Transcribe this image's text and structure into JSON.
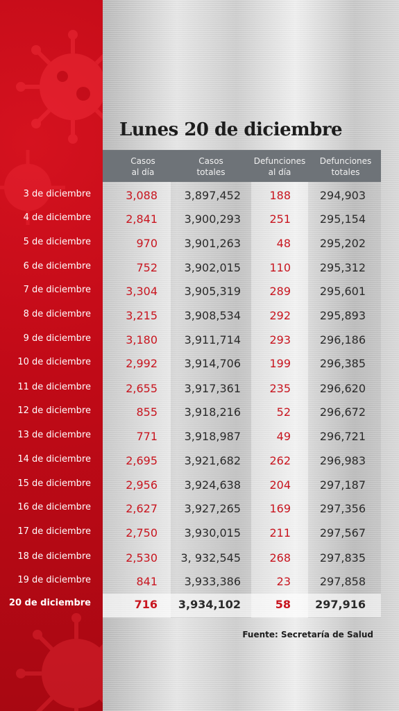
{
  "title": "Lunes 20 de diciembre",
  "headers": {
    "casos_dia": "Casos\nal día",
    "casos_totales": "Casos\ntotales",
    "def_dia": "Defunciones\nal día",
    "def_totales": "Defunciones\ntotales"
  },
  "rows": [
    {
      "date": "3 de diciembre",
      "casos_dia": "3,088",
      "casos_totales": "3,897,452",
      "def_dia": "188",
      "def_totales": "294,903"
    },
    {
      "date": "4 de diciembre",
      "casos_dia": "2,841",
      "casos_totales": "3,900,293",
      "def_dia": "251",
      "def_totales": "295,154"
    },
    {
      "date": "5 de diciembre",
      "casos_dia": "970",
      "casos_totales": "3,901,263",
      "def_dia": "48",
      "def_totales": "295,202"
    },
    {
      "date": "6 de diciembre",
      "casos_dia": "752",
      "casos_totales": "3,902,015",
      "def_dia": "110",
      "def_totales": "295,312"
    },
    {
      "date": "7 de diciembre",
      "casos_dia": "3,304",
      "casos_totales": "3,905,319",
      "def_dia": "289",
      "def_totales": "295,601"
    },
    {
      "date": "8 de diciembre",
      "casos_dia": "3,215",
      "casos_totales": "3,908,534",
      "def_dia": "292",
      "def_totales": "295,893"
    },
    {
      "date": "9 de diciembre",
      "casos_dia": "3,180",
      "casos_totales": "3,911,714",
      "def_dia": "293",
      "def_totales": "296,186"
    },
    {
      "date": "10 de diciembre",
      "casos_dia": "2,992",
      "casos_totales": "3,914,706",
      "def_dia": "199",
      "def_totales": "296,385"
    },
    {
      "date": "11 de diciembre",
      "casos_dia": "2,655",
      "casos_totales": "3,917,361",
      "def_dia": "235",
      "def_totales": "296,620"
    },
    {
      "date": "12 de diciembre",
      "casos_dia": "855",
      "casos_totales": "3,918,216",
      "def_dia": "52",
      "def_totales": "296,672"
    },
    {
      "date": "13 de diciembre",
      "casos_dia": "771",
      "casos_totales": "3,918,987",
      "def_dia": "49",
      "def_totales": "296,721"
    },
    {
      "date": "14 de diciembre",
      "casos_dia": "2,695",
      "casos_totales": "3,921,682",
      "def_dia": "262",
      "def_totales": "296,983"
    },
    {
      "date": "15 de diciembre",
      "casos_dia": "2,956",
      "casos_totales": "3,924,638",
      "def_dia": "204",
      "def_totales": "297,187"
    },
    {
      "date": "16 de diciembre",
      "casos_dia": "2,627",
      "casos_totales": "3,927,265",
      "def_dia": "169",
      "def_totales": "297,356"
    },
    {
      "date": "17 de diciembre",
      "casos_dia": "2,750",
      "casos_totales": "3,930,015",
      "def_dia": "211",
      "def_totales": "297,567"
    },
    {
      "date": "18 de diciembre",
      "casos_dia": "2,530",
      "casos_totales": "3, 932,545",
      "def_dia": "268",
      "def_totales": "297,835"
    },
    {
      "date": "19 de diciembre",
      "casos_dia": "841",
      "casos_totales": "3,933,386",
      "def_dia": "23",
      "def_totales": "297,858"
    },
    {
      "date": "20 de diciembre",
      "casos_dia": "716",
      "casos_totales": "3,934,102",
      "def_dia": "58",
      "def_totales": "297,916"
    }
  ],
  "source": "Fuente: Secretaría de Salud",
  "colors": {
    "red_panel": "#c10a17",
    "red_value": "#c8151f",
    "header_bar": "#6e7378",
    "dark_text": "#2a2a2a"
  }
}
